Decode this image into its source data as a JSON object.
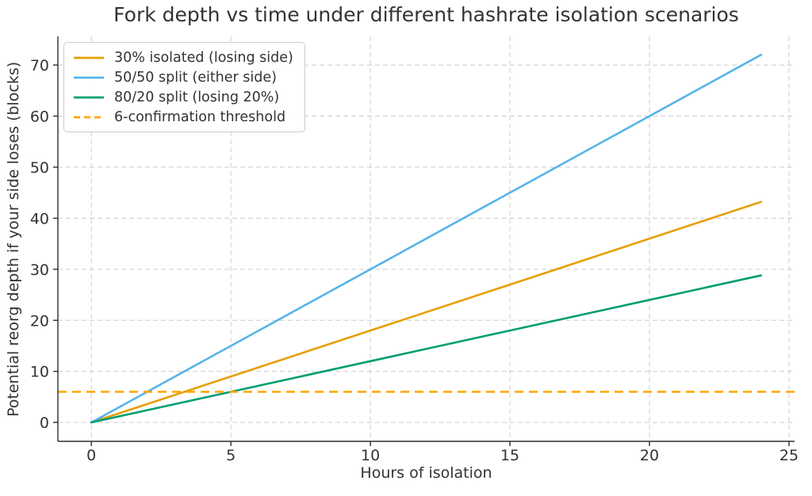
{
  "chart_data": {
    "type": "line",
    "title": "Fork depth vs time under different hashrate isolation scenarios",
    "xlabel": "Hours of isolation",
    "ylabel": "Potential reorg depth if your side loses (blocks)",
    "x_ticks": [
      0,
      5,
      10,
      15,
      20,
      25
    ],
    "y_ticks": [
      0,
      10,
      20,
      30,
      40,
      50,
      60,
      70
    ],
    "xlim": [
      -1.2,
      25.2
    ],
    "ylim": [
      -3.7,
      75.6
    ],
    "grid": true,
    "grid_style": "dashed",
    "grid_color": "#cccccc",
    "axis_color": "#333333",
    "spine_color": "#2f2f2f",
    "legend_position": "upper left",
    "series": [
      {
        "name": "30% isolated (losing side)",
        "color": "#E69F00",
        "style": "solid",
        "x": [
          0,
          24
        ],
        "y": [
          0,
          43.2
        ]
      },
      {
        "name": "50/50 split (either side)",
        "color": "#56B4E9",
        "style": "solid",
        "x": [
          0,
          24
        ],
        "y": [
          0,
          72
        ]
      },
      {
        "name": "80/20 split (losing 20%)",
        "color": "#009E73",
        "style": "solid",
        "x": [
          0,
          24
        ],
        "y": [
          0,
          28.8
        ]
      },
      {
        "name": "6-confirmation threshold",
        "color": "#FFA500",
        "style": "dashed",
        "hline": 6
      }
    ]
  }
}
